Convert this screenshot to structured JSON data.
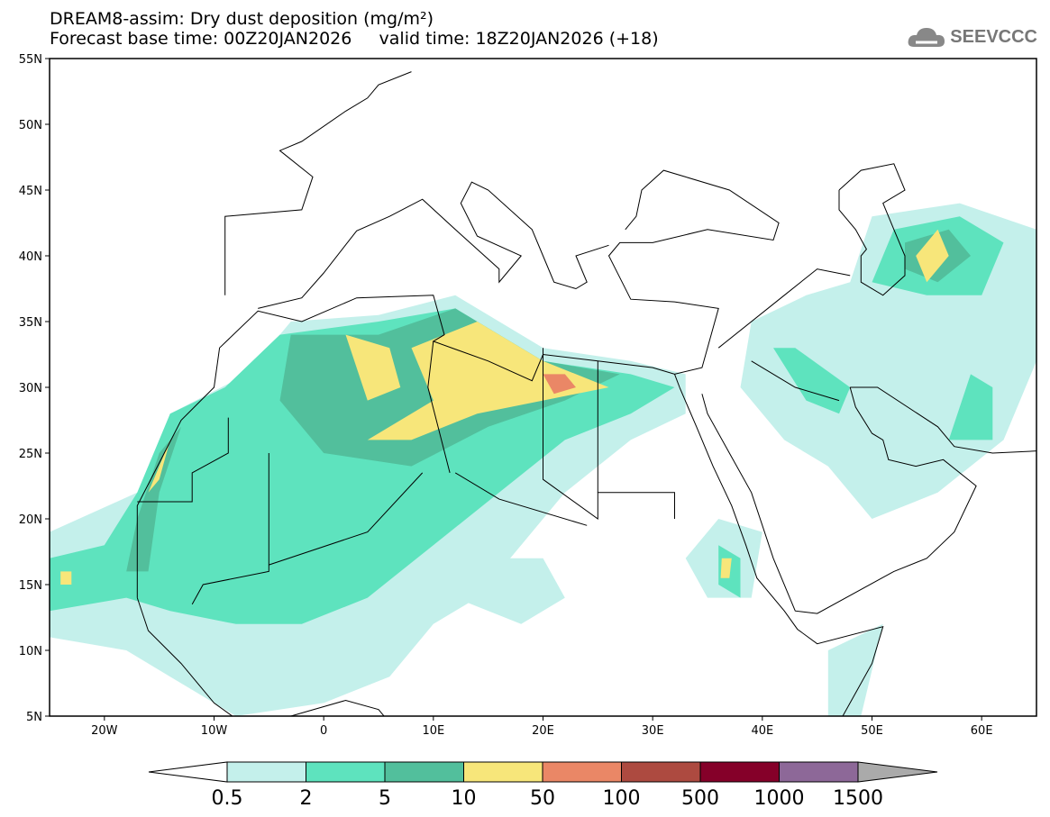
{
  "header": {
    "title": "DREAM8-assim: Dry dust deposition (mg/m²)",
    "forecast_base": "Forecast base time: 00Z20JAN2026",
    "valid_time": "valid time: 18Z20JAN2026 (+18)",
    "logo_text": "SEEVCCC"
  },
  "map": {
    "lat_labels": [
      "55N",
      "50N",
      "45N",
      "40N",
      "35N",
      "30N",
      "25N",
      "20N",
      "15N",
      "10N",
      "5N"
    ],
    "lon_labels": [
      "20W",
      "10W",
      "0",
      "10E",
      "20E",
      "30E",
      "40E",
      "50E",
      "60E"
    ],
    "lat_range": [
      5,
      55
    ],
    "lon_range": [
      -25,
      65
    ]
  },
  "colorbar": {
    "labels": [
      "0.5",
      "2",
      "5",
      "10",
      "50",
      "100",
      "500",
      "1000",
      "1500"
    ],
    "colors": [
      "#c4f0eb",
      "#5ee3be",
      "#52bf9c",
      "#f7e67a",
      "#ea8766",
      "#ad4a40",
      "#850029",
      "#8d6898"
    ],
    "under_color": "#ffffff",
    "over_color": "#aaaaaa"
  }
}
